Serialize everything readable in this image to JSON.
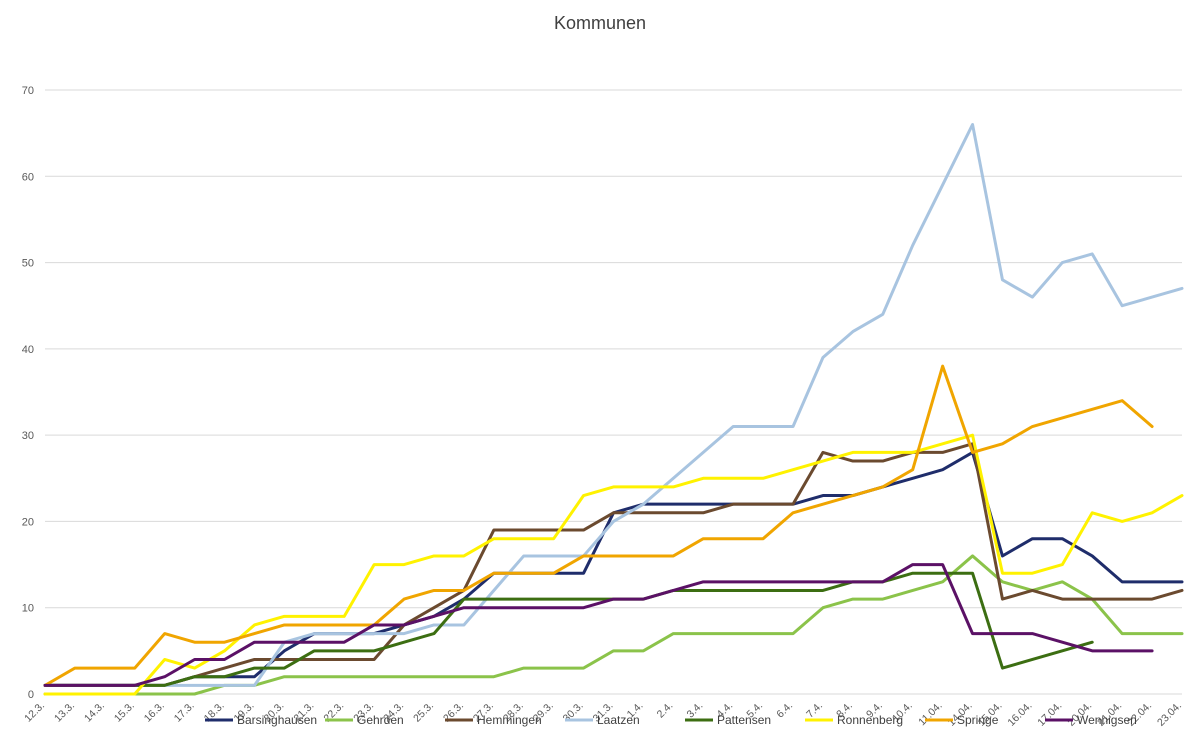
{
  "chart_data": {
    "type": "line",
    "title": "Kommunen",
    "xlabel": "",
    "ylabel": "",
    "ylim": [
      0,
      70
    ],
    "yticks": [
      0,
      10,
      20,
      30,
      40,
      50,
      60,
      70
    ],
    "grid": true,
    "legend_position": "bottom",
    "categories": [
      "12.3.",
      "13.3.",
      "14.3.",
      "15.3.",
      "16.3.",
      "17.3.",
      "18.3.",
      "19.3.",
      "20.3.",
      "21.3.",
      "22.3.",
      "23.3.",
      "24.3.",
      "25.3.",
      "26.3.",
      "27.3.",
      "28.3.",
      "29.3.",
      "30.3.",
      "31.3.",
      "1.4.",
      "2.4.",
      "3.4.",
      "4.4.",
      "5.4.",
      "6.4.",
      "7.4.",
      "8.4.",
      "9.4.",
      "10.4.",
      "11.04.",
      "14.04.",
      "15.04.",
      "16.04.",
      "17.04.",
      "20.04.",
      "21.04.",
      "22.04.",
      "23.04."
    ],
    "series": [
      {
        "name": "Barsinghausen",
        "color": "#1F2D6B",
        "values": [
          1,
          1,
          1,
          1,
          1,
          2,
          2,
          2,
          5,
          7,
          7,
          7,
          8,
          9,
          11,
          14,
          14,
          14,
          14,
          21,
          22,
          22,
          22,
          22,
          22,
          22,
          23,
          23,
          24,
          25,
          26,
          28,
          16,
          18,
          18,
          16,
          13,
          13,
          13
        ]
      },
      {
        "name": "Gehrden",
        "color": "#8BC34A",
        "values": [
          0,
          0,
          0,
          0,
          0,
          0,
          1,
          1,
          2,
          2,
          2,
          2,
          2,
          2,
          2,
          2,
          3,
          3,
          3,
          5,
          5,
          7,
          7,
          7,
          7,
          7,
          10,
          11,
          11,
          12,
          13,
          16,
          13,
          12,
          13,
          11,
          7,
          7,
          7
        ]
      },
      {
        "name": "Hemmingen",
        "color": "#6B4A2F",
        "values": [
          1,
          1,
          1,
          1,
          1,
          2,
          3,
          4,
          4,
          4,
          4,
          4,
          8,
          10,
          12,
          19,
          19,
          19,
          19,
          21,
          21,
          21,
          21,
          22,
          22,
          22,
          28,
          27,
          27,
          28,
          28,
          29,
          11,
          12,
          11,
          11,
          11,
          11,
          12
        ]
      },
      {
        "name": "Laatzen",
        "color": "#A8C4E0",
        "values": [
          1,
          1,
          1,
          1,
          1,
          1,
          1,
          1,
          6,
          7,
          7,
          7,
          7,
          8,
          8,
          12,
          16,
          16,
          16,
          20,
          22,
          25,
          28,
          31,
          31,
          31,
          39,
          42,
          44,
          52,
          59,
          66,
          48,
          46,
          50,
          51,
          45,
          46,
          47
        ]
      },
      {
        "name": "Pattensen",
        "color": "#3C6E12",
        "values": [
          1,
          1,
          1,
          1,
          1,
          2,
          2,
          3,
          3,
          5,
          5,
          5,
          6,
          7,
          11,
          11,
          11,
          11,
          11,
          11,
          11,
          12,
          12,
          12,
          12,
          12,
          12,
          13,
          13,
          14,
          14,
          14,
          3,
          4,
          5,
          6,
          null,
          null,
          null
        ]
      },
      {
        "name": "Ronnenberg",
        "color": "#FFF200",
        "values": [
          0,
          0,
          0,
          0,
          4,
          3,
          5,
          8,
          9,
          9,
          9,
          15,
          15,
          16,
          16,
          18,
          18,
          18,
          23,
          24,
          24,
          24,
          25,
          25,
          25,
          26,
          27,
          28,
          28,
          28,
          29,
          30,
          14,
          14,
          15,
          21,
          20,
          21,
          23
        ]
      },
      {
        "name": "Springe",
        "color": "#F0A500",
        "values": [
          1,
          3,
          3,
          3,
          7,
          6,
          6,
          7,
          8,
          8,
          8,
          8,
          11,
          12,
          12,
          14,
          14,
          14,
          16,
          16,
          16,
          16,
          18,
          18,
          18,
          21,
          22,
          23,
          24,
          26,
          38,
          28,
          29,
          31,
          32,
          33,
          34,
          31,
          null
        ]
      },
      {
        "name": "Wennigsen",
        "color": "#5B1166",
        "values": [
          1,
          1,
          1,
          1,
          2,
          4,
          4,
          6,
          6,
          6,
          6,
          8,
          8,
          9,
          10,
          10,
          10,
          10,
          10,
          11,
          11,
          12,
          13,
          13,
          13,
          13,
          13,
          13,
          13,
          15,
          15,
          7,
          7,
          7,
          6,
          5,
          5,
          5,
          null
        ]
      }
    ]
  }
}
